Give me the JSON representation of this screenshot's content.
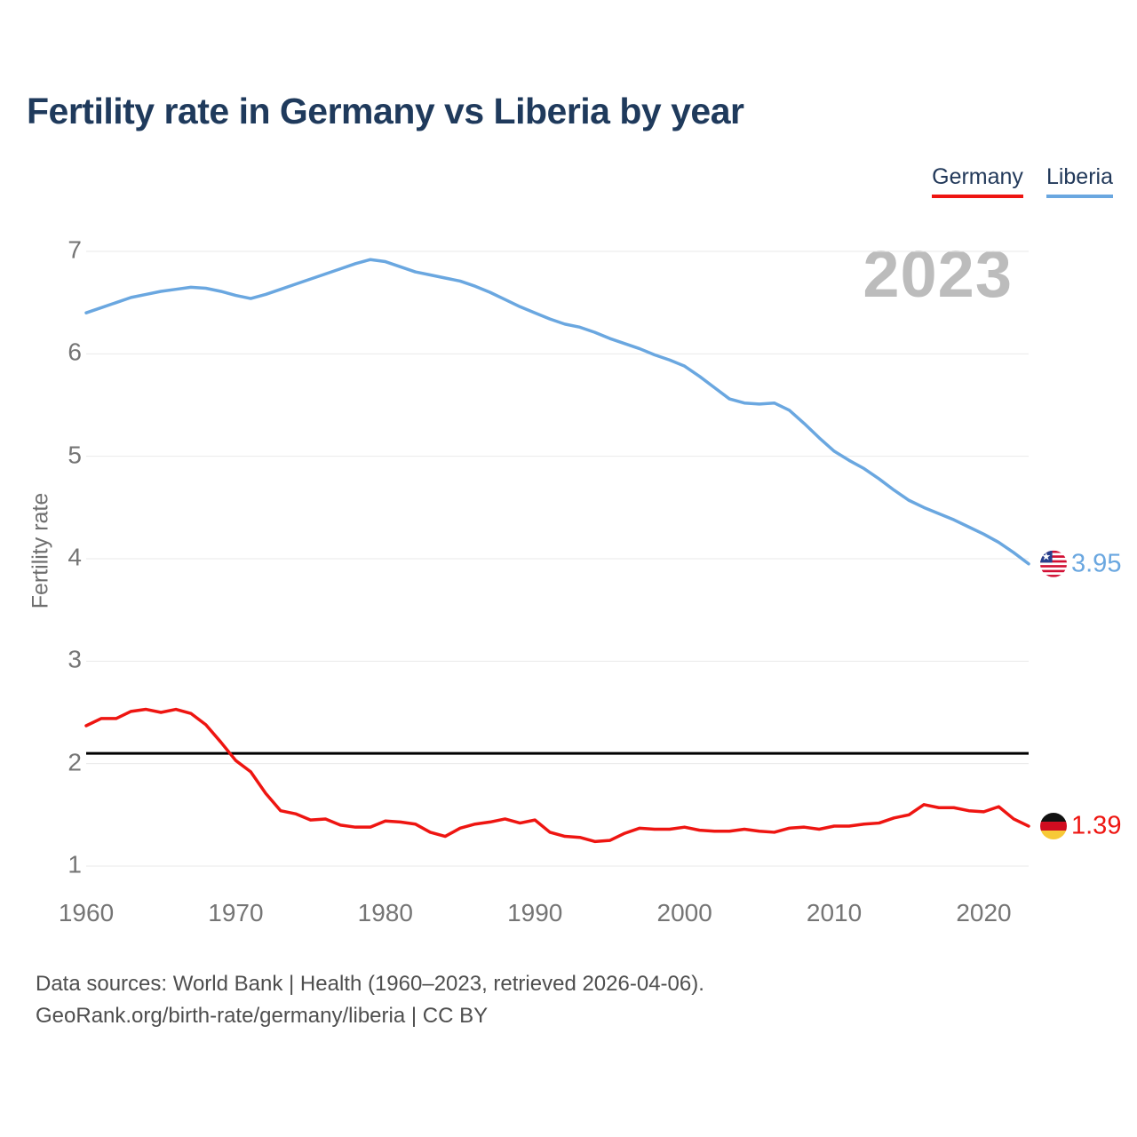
{
  "header": {
    "title": "Fertility rate in Germany vs Liberia by year"
  },
  "legend": {
    "items": [
      {
        "id": "germany",
        "label": "Germany",
        "color": "#ee1511"
      },
      {
        "id": "liberia",
        "label": "Liberia",
        "color": "#6aa7e0"
      }
    ]
  },
  "chart": {
    "watermark": "2023",
    "ylabel": "Fertility rate"
  },
  "chart_data": {
    "type": "line",
    "title": "Fertility rate in Germany vs Liberia by year",
    "xlabel": "",
    "ylabel": "Fertility rate",
    "xlim": [
      1960,
      2023
    ],
    "ylim": [
      1,
      7
    ],
    "grid": "horizontal",
    "grid_color": "#e9e9e9",
    "legend_position": "top-right",
    "y_ticks": [
      1,
      2,
      3,
      4,
      5,
      6,
      7
    ],
    "x_ticks": [
      1960,
      1970,
      1980,
      1990,
      2000,
      2010,
      2020
    ],
    "x": [
      1960,
      1961,
      1962,
      1963,
      1964,
      1965,
      1966,
      1967,
      1968,
      1969,
      1970,
      1971,
      1972,
      1973,
      1974,
      1975,
      1976,
      1977,
      1978,
      1979,
      1980,
      1981,
      1982,
      1983,
      1984,
      1985,
      1986,
      1987,
      1988,
      1989,
      1990,
      1991,
      1992,
      1993,
      1994,
      1995,
      1996,
      1997,
      1998,
      1999,
      2000,
      2001,
      2002,
      2003,
      2004,
      2005,
      2006,
      2007,
      2008,
      2009,
      2010,
      2011,
      2012,
      2013,
      2014,
      2015,
      2016,
      2017,
      2018,
      2019,
      2020,
      2021,
      2022,
      2023
    ],
    "series": [
      {
        "name": "Germany",
        "color": "#ee1511",
        "values": [
          2.37,
          2.44,
          2.44,
          2.51,
          2.53,
          2.5,
          2.53,
          2.49,
          2.38,
          2.21,
          2.03,
          1.92,
          1.71,
          1.54,
          1.51,
          1.45,
          1.46,
          1.4,
          1.38,
          1.38,
          1.44,
          1.43,
          1.41,
          1.33,
          1.29,
          1.37,
          1.41,
          1.43,
          1.46,
          1.42,
          1.45,
          1.33,
          1.29,
          1.28,
          1.24,
          1.25,
          1.32,
          1.37,
          1.36,
          1.36,
          1.38,
          1.35,
          1.34,
          1.34,
          1.36,
          1.34,
          1.33,
          1.37,
          1.38,
          1.36,
          1.39,
          1.39,
          1.41,
          1.42,
          1.47,
          1.5,
          1.6,
          1.57,
          1.57,
          1.54,
          1.53,
          1.58,
          1.46,
          1.39
        ]
      },
      {
        "name": "Liberia",
        "color": "#6aa7e0",
        "values": [
          6.4,
          6.45,
          6.5,
          6.55,
          6.58,
          6.61,
          6.63,
          6.65,
          6.64,
          6.61,
          6.57,
          6.54,
          6.58,
          6.63,
          6.68,
          6.73,
          6.78,
          6.83,
          6.88,
          6.92,
          6.9,
          6.85,
          6.8,
          6.77,
          6.74,
          6.71,
          6.66,
          6.6,
          6.53,
          6.46,
          6.4,
          6.34,
          6.29,
          6.26,
          6.21,
          6.15,
          6.1,
          6.05,
          5.99,
          5.94,
          5.88,
          5.78,
          5.67,
          5.56,
          5.52,
          5.51,
          5.52,
          5.45,
          5.32,
          5.18,
          5.05,
          4.96,
          4.88,
          4.78,
          4.67,
          4.57,
          4.5,
          4.44,
          4.38,
          4.31,
          4.24,
          4.16,
          4.06,
          3.95
        ]
      }
    ],
    "reference_line": {
      "value": 2.1,
      "color": "#000000"
    },
    "end_markers": [
      {
        "series": "Liberia",
        "flag": "liberia-flag",
        "value_label": "3.95"
      },
      {
        "series": "Germany",
        "flag": "germany-flag",
        "value_label": "1.39"
      }
    ]
  },
  "footer": {
    "line1": "Data sources: World Bank | Health (1960–2023, retrieved 2026-04-06).",
    "line2": "GeoRank.org/birth-rate/germany/liberia | CC BY"
  }
}
